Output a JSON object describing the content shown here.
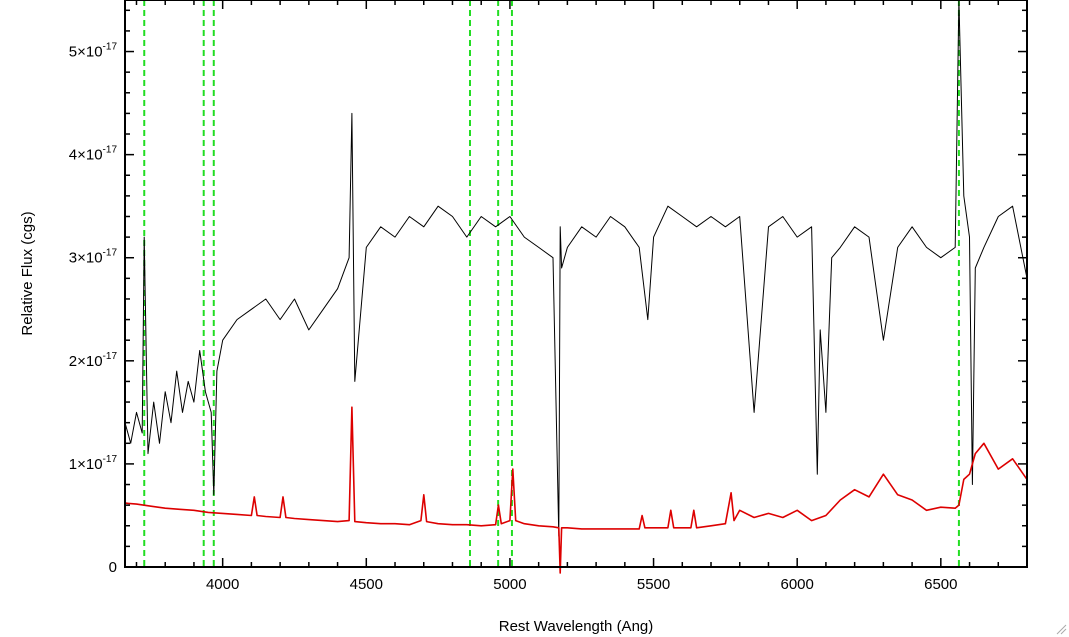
{
  "chart_data": {
    "type": "line",
    "title": "",
    "xlabel": "Rest Wavelength (Ang)",
    "ylabel": "Relative Flux (cgs)",
    "xlim": [
      3660,
      6800
    ],
    "ylim": [
      0,
      5.5e-17
    ],
    "x_ticks": [
      {
        "value": 4000,
        "label": "4000"
      },
      {
        "value": 4500,
        "label": "4500"
      },
      {
        "value": 5000,
        "label": "5000"
      },
      {
        "value": 5500,
        "label": "5500"
      },
      {
        "value": 6000,
        "label": "6000"
      },
      {
        "value": 6500,
        "label": "6500"
      }
    ],
    "y_ticks": [
      {
        "value": 0,
        "label": "0",
        "mantissa": "",
        "exponent": ""
      },
      {
        "value": 1e-17,
        "label": "1×10⁻¹⁷",
        "mantissa": "1×10",
        "exponent": "-17"
      },
      {
        "value": 2e-17,
        "label": "2×10⁻¹⁷",
        "mantissa": "2×10",
        "exponent": "-17"
      },
      {
        "value": 3e-17,
        "label": "3×10⁻¹⁷",
        "mantissa": "3×10",
        "exponent": "-17"
      },
      {
        "value": 4e-17,
        "label": "4×10⁻¹⁷",
        "mantissa": "4×10",
        "exponent": "-17"
      },
      {
        "value": 5e-17,
        "label": "5×10⁻¹⁷",
        "mantissa": "5×10",
        "exponent": "-17"
      }
    ],
    "grid": false,
    "legend": "none",
    "reference_lines": {
      "orientation": "vertical",
      "style": "dashed",
      "color": "#22dd22",
      "x": [
        3727,
        3934,
        3969,
        4861,
        4959,
        5007,
        6563
      ]
    },
    "series": [
      {
        "color": "#000000",
        "x": [
          3660,
          3680,
          3700,
          3720,
          3727,
          3740,
          3760,
          3780,
          3800,
          3820,
          3840,
          3860,
          3880,
          3900,
          3920,
          3940,
          3960,
          3969,
          3980,
          4000,
          4050,
          4100,
          4150,
          4200,
          4250,
          4300,
          4350,
          4400,
          4440,
          4450,
          4460,
          4500,
          4550,
          4600,
          4650,
          4700,
          4750,
          4800,
          4850,
          4900,
          4950,
          5000,
          5050,
          5100,
          5150,
          5170,
          5175,
          5180,
          5200,
          5250,
          5300,
          5350,
          5400,
          5450,
          5480,
          5500,
          5550,
          5600,
          5650,
          5700,
          5750,
          5800,
          5850,
          5900,
          5950,
          6000,
          6050,
          6070,
          6080,
          6100,
          6120,
          6150,
          6200,
          6250,
          6300,
          6350,
          6400,
          6450,
          6500,
          6550,
          6563,
          6580,
          6600,
          6610,
          6620,
          6650,
          6700,
          6750,
          6800
        ],
        "values": [
          1.4e-17,
          1.2e-17,
          1.5e-17,
          1.3e-17,
          3.2e-17,
          1.1e-17,
          1.6e-17,
          1.2e-17,
          1.7e-17,
          1.4e-17,
          1.9e-17,
          1.5e-17,
          1.8e-17,
          1.6e-17,
          2.1e-17,
          1.7e-17,
          1.5e-17,
          7e-18,
          1.9e-17,
          2.2e-17,
          2.4e-17,
          2.5e-17,
          2.6e-17,
          2.4e-17,
          2.6e-17,
          2.3e-17,
          2.5e-17,
          2.7e-17,
          3e-17,
          4.4e-17,
          1.8e-17,
          3.1e-17,
          3.3e-17,
          3.2e-17,
          3.4e-17,
          3.3e-17,
          3.5e-17,
          3.4e-17,
          3.2e-17,
          3.4e-17,
          3.3e-17,
          3.4e-17,
          3.2e-17,
          3.1e-17,
          3e-17,
          3e-18,
          3.3e-17,
          2.9e-17,
          3.1e-17,
          3.3e-17,
          3.2e-17,
          3.4e-17,
          3.3e-17,
          3.1e-17,
          2.4e-17,
          3.2e-17,
          3.5e-17,
          3.4e-17,
          3.3e-17,
          3.4e-17,
          3.3e-17,
          3.4e-17,
          1.5e-17,
          3.3e-17,
          3.4e-17,
          3.2e-17,
          3.3e-17,
          9e-18,
          2.3e-17,
          1.5e-17,
          3e-17,
          3.1e-17,
          3.3e-17,
          3.2e-17,
          2.2e-17,
          3.1e-17,
          3.3e-17,
          3.1e-17,
          3e-17,
          3.1e-17,
          5.5e-17,
          3.6e-17,
          3.2e-17,
          8e-18,
          2.9e-17,
          3.1e-17,
          3.4e-17,
          3.5e-17,
          2.8e-17
        ]
      },
      {
        "color": "#dd0000",
        "x": [
          3660,
          3700,
          3750,
          3800,
          3850,
          3900,
          3950,
          4000,
          4050,
          4100,
          4110,
          4120,
          4150,
          4200,
          4210,
          4220,
          4250,
          4300,
          4350,
          4400,
          4440,
          4450,
          4460,
          4500,
          4550,
          4600,
          4650,
          4690,
          4700,
          4710,
          4750,
          4800,
          4850,
          4900,
          4950,
          4960,
          4970,
          5000,
          5010,
          5020,
          5050,
          5100,
          5150,
          5170,
          5175,
          5180,
          5200,
          5250,
          5300,
          5350,
          5400,
          5450,
          5460,
          5470,
          5500,
          5550,
          5560,
          5570,
          5600,
          5630,
          5640,
          5650,
          5700,
          5750,
          5770,
          5780,
          5800,
          5850,
          5900,
          5950,
          6000,
          6050,
          6100,
          6150,
          6200,
          6250,
          6300,
          6350,
          6400,
          6450,
          6500,
          6550,
          6563,
          6580,
          6600,
          6620,
          6650,
          6700,
          6750,
          6800
        ],
        "values": [
          6.2e-18,
          6.1e-18,
          5.9e-18,
          5.7e-18,
          5.6e-18,
          5.5e-18,
          5.3e-18,
          5.2e-18,
          5.1e-18,
          5e-18,
          6.8e-18,
          5e-18,
          4.9e-18,
          4.8e-18,
          6.8e-18,
          4.8e-18,
          4.7e-18,
          4.6e-18,
          4.5e-18,
          4.4e-18,
          4.5e-18,
          1.55e-17,
          4.4e-18,
          4.3e-18,
          4.2e-18,
          4.2e-18,
          4.1e-18,
          4.5e-18,
          7e-18,
          4.4e-18,
          4.2e-18,
          4.1e-18,
          4.1e-18,
          4e-18,
          4.1e-18,
          6e-18,
          4.2e-18,
          4.5e-18,
          9.5e-18,
          4.5e-18,
          4.2e-18,
          4e-18,
          3.9e-18,
          3.8e-18,
          -2e-18,
          3.8e-18,
          3.8e-18,
          3.7e-18,
          3.7e-18,
          3.7e-18,
          3.7e-18,
          3.7e-18,
          5e-18,
          3.8e-18,
          3.8e-18,
          3.8e-18,
          5.5e-18,
          3.8e-18,
          3.8e-18,
          3.8e-18,
          5.5e-18,
          3.8e-18,
          4e-18,
          4.2e-18,
          7.2e-18,
          4.5e-18,
          5.5e-18,
          4.8e-18,
          5.2e-18,
          4.8e-18,
          5.5e-18,
          4.5e-18,
          5e-18,
          6.5e-18,
          7.5e-18,
          6.8e-18,
          9e-18,
          7e-18,
          6.5e-18,
          5.5e-18,
          5.8e-18,
          5.7e-18,
          6e-18,
          8.5e-18,
          9e-18,
          1.1e-17,
          1.2e-17,
          9.5e-18,
          1.05e-17,
          8.5e-18
        ]
      }
    ]
  }
}
